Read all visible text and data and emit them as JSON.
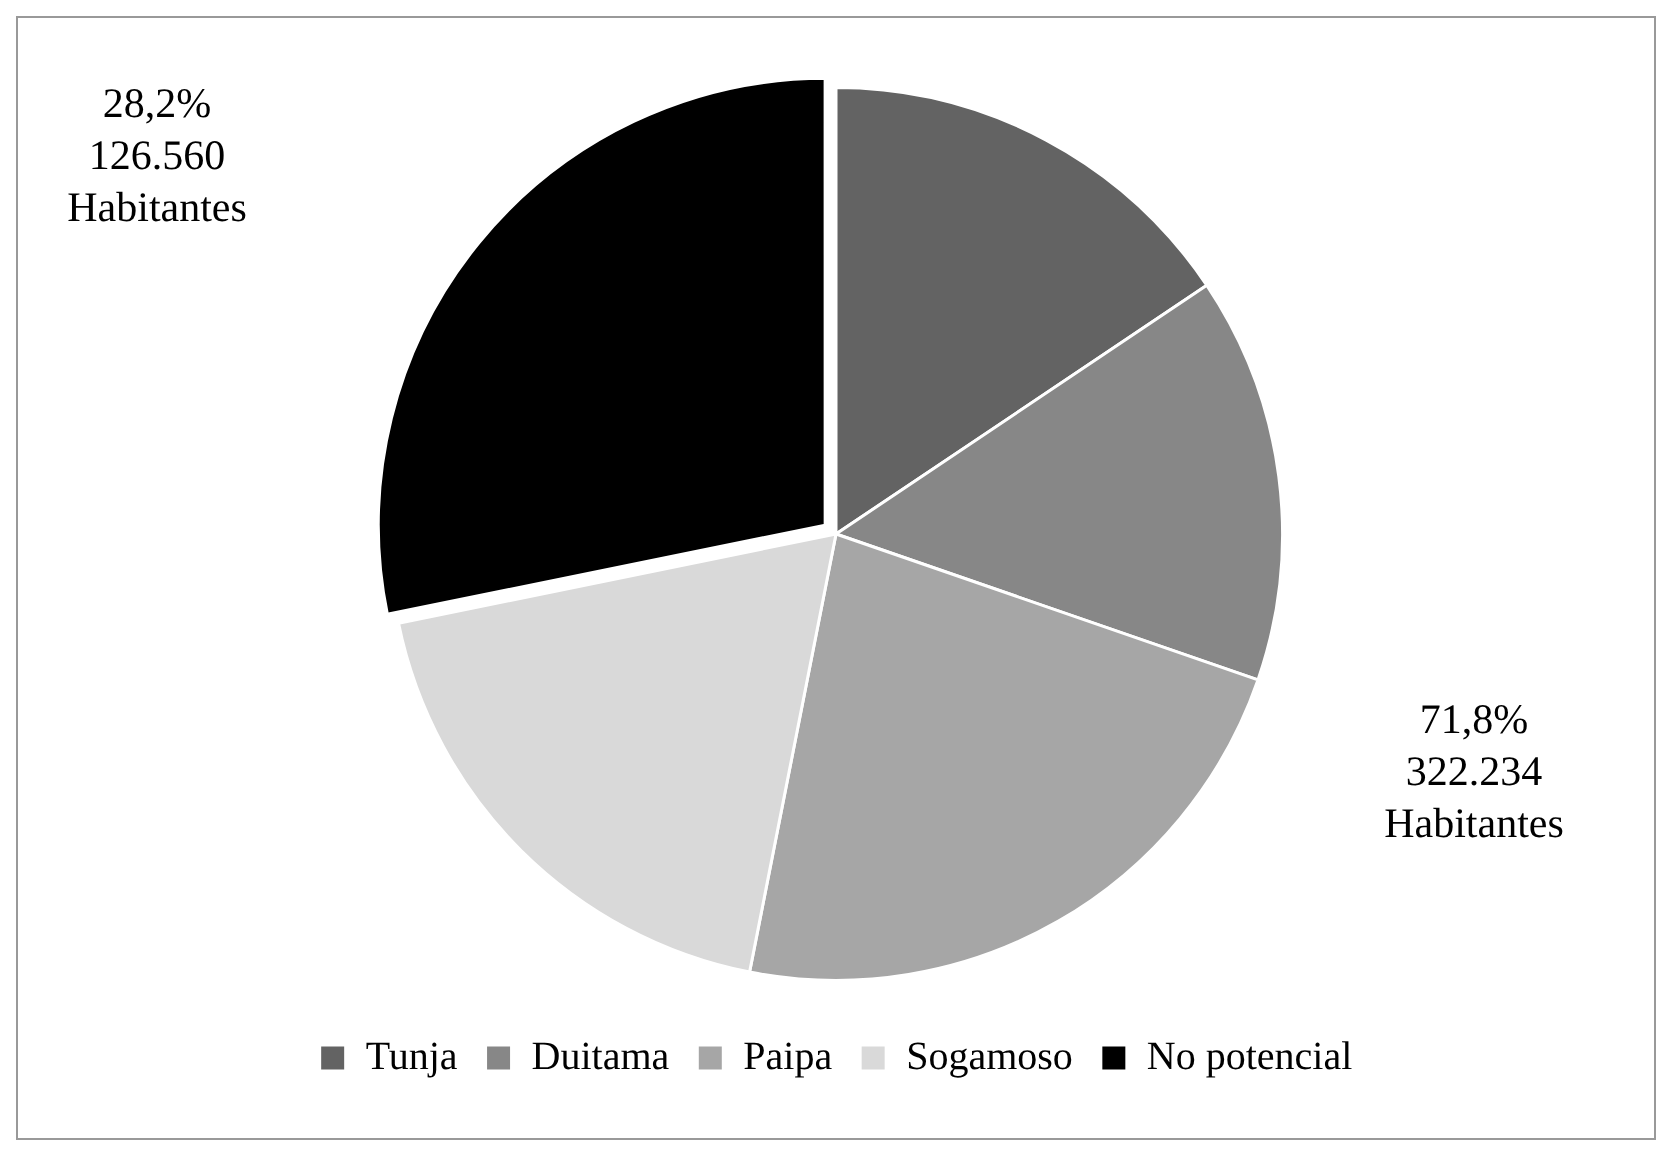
{
  "chart_data": {
    "type": "pie",
    "categories": [
      "Tunja",
      "Duitama",
      "Paipa",
      "Sogamoso",
      "No potencial"
    ],
    "values": [
      15.6,
      14.7,
      22.8,
      18.7,
      28.2
    ],
    "colors": [
      "#636363",
      "#878787",
      "#a6a6a6",
      "#d9d9d9",
      "#000000"
    ],
    "annotations": [
      "28,2%\n126.560\nHabitantes",
      "71,8%\n322.234\nHabitantes"
    ],
    "legend": "bottom"
  }
}
